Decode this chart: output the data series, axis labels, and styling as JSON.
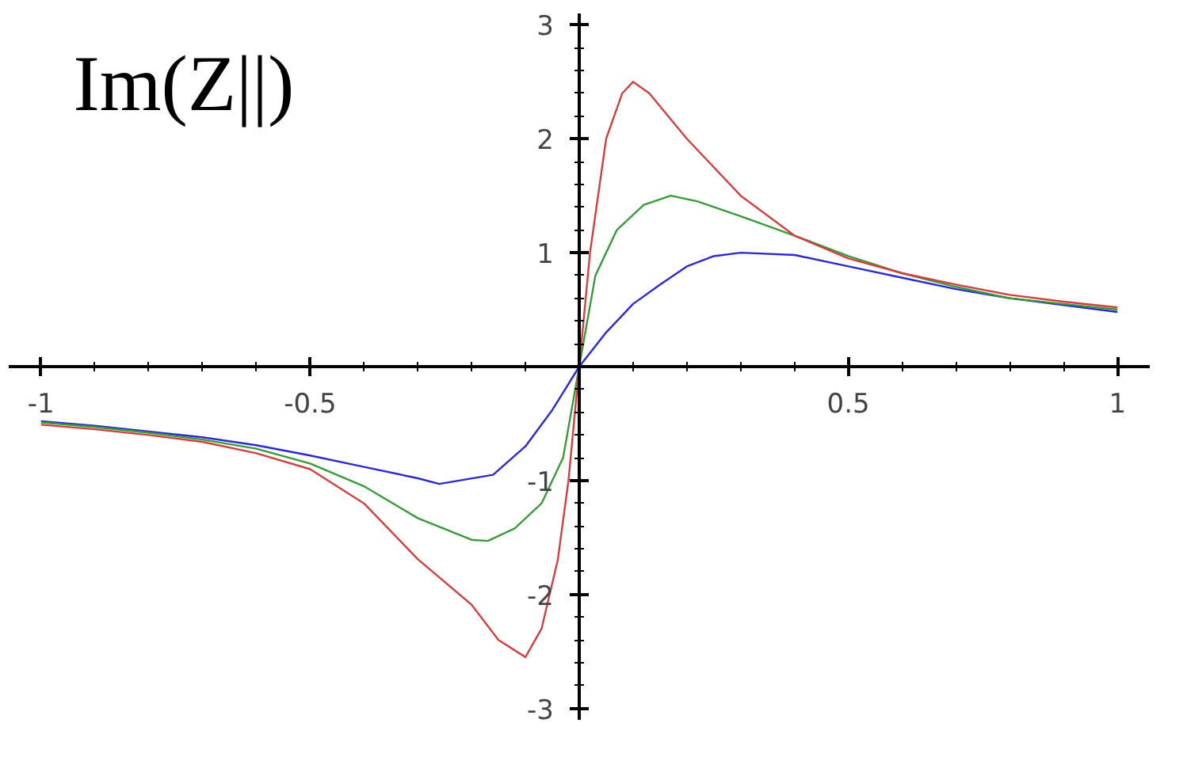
{
  "chart_data": {
    "type": "line",
    "title": "Im(Z||)",
    "xlim": [
      -1.06,
      1.06
    ],
    "ylim": [
      -3.1,
      3.1
    ],
    "xticks": [
      -1,
      {
        "value": -0.9,
        "label": null
      },
      {
        "value": -0.8,
        "label": null
      },
      {
        "value": -0.7,
        "label": null
      },
      {
        "value": -0.6,
        "label": null
      },
      -0.5,
      {
        "value": -0.4,
        "label": null
      },
      {
        "value": -0.3,
        "label": null
      },
      {
        "value": -0.2,
        "label": null
      },
      {
        "value": -0.1,
        "label": null
      },
      {
        "value": 0.1,
        "label": null
      },
      {
        "value": 0.2,
        "label": null
      },
      {
        "value": 0.3,
        "label": null
      },
      {
        "value": 0.4,
        "label": null
      },
      0.5,
      {
        "value": 0.6,
        "label": null
      },
      {
        "value": 0.7,
        "label": null
      },
      {
        "value": 0.8,
        "label": null
      },
      {
        "value": 0.9,
        "label": null
      },
      1
    ],
    "yticks": [
      -3,
      {
        "value": -2.8,
        "label": null
      },
      {
        "value": -2.6,
        "label": null
      },
      {
        "value": -2.4,
        "label": null
      },
      {
        "value": -2.2,
        "label": null
      },
      -2,
      {
        "value": -1.8,
        "label": null
      },
      {
        "value": -1.6,
        "label": null
      },
      {
        "value": -1.4,
        "label": null
      },
      {
        "value": -1.2,
        "label": null
      },
      -1,
      {
        "value": -0.8,
        "label": null
      },
      {
        "value": -0.6,
        "label": null
      },
      {
        "value": -0.4,
        "label": null
      },
      {
        "value": -0.2,
        "label": null
      },
      {
        "value": 0.2,
        "label": null
      },
      {
        "value": 0.4,
        "label": null
      },
      {
        "value": 0.6,
        "label": null
      },
      {
        "value": 0.8,
        "label": null
      },
      1,
      {
        "value": 1.2,
        "label": null
      },
      {
        "value": 1.4,
        "label": null
      },
      {
        "value": 1.6,
        "label": null
      },
      {
        "value": 1.8,
        "label": null
      },
      2,
      {
        "value": 2.2,
        "label": null
      },
      {
        "value": 2.4,
        "label": null
      },
      {
        "value": 2.6,
        "label": null
      },
      {
        "value": 2.8,
        "label": null
      },
      3
    ],
    "grid": false,
    "marker": "none",
    "line_style": "solid",
    "series": [
      {
        "color": "#d04040",
        "x": [
          -1,
          -0.9,
          -0.8,
          -0.7,
          -0.6,
          -0.5,
          -0.4,
          -0.3,
          -0.2,
          -0.15,
          -0.1,
          -0.07,
          -0.04,
          -0.02,
          0,
          0.02,
          0.05,
          0.08,
          0.1,
          0.13,
          0.2,
          0.3,
          0.4,
          0.5,
          0.6,
          0.7,
          0.8,
          0.9,
          1
        ],
        "values": [
          -0.51,
          -0.55,
          -0.6,
          -0.66,
          -0.76,
          -0.9,
          -1.2,
          -1.69,
          -2.09,
          -2.4,
          -2.55,
          -2.3,
          -1.7,
          -1.0,
          0,
          1.0,
          2.0,
          2.4,
          2.5,
          2.4,
          2.0,
          1.5,
          1.15,
          0.95,
          0.82,
          0.72,
          0.63,
          0.57,
          0.52
        ]
      },
      {
        "color": "#3a9a3a",
        "x": [
          -1,
          -0.9,
          -0.8,
          -0.7,
          -0.6,
          -0.5,
          -0.4,
          -0.3,
          -0.2,
          -0.17,
          -0.12,
          -0.07,
          -0.03,
          0,
          0.03,
          0.07,
          0.12,
          0.17,
          0.22,
          0.3,
          0.4,
          0.5,
          0.6,
          0.7,
          0.8,
          0.9,
          1
        ],
        "values": [
          -0.49,
          -0.53,
          -0.58,
          -0.64,
          -0.72,
          -0.85,
          -1.05,
          -1.33,
          -1.52,
          -1.53,
          -1.42,
          -1.2,
          -0.8,
          0,
          0.8,
          1.2,
          1.42,
          1.5,
          1.45,
          1.32,
          1.15,
          0.97,
          0.82,
          0.7,
          0.6,
          0.55,
          0.5
        ]
      },
      {
        "color": "#2a2ad0",
        "x": [
          -1,
          -0.9,
          -0.8,
          -0.7,
          -0.6,
          -0.5,
          -0.4,
          -0.3,
          -0.26,
          -0.16,
          -0.1,
          -0.05,
          0,
          0.05,
          0.1,
          0.15,
          0.2,
          0.25,
          0.3,
          0.4,
          0.5,
          0.6,
          0.7,
          0.8,
          0.9,
          1
        ],
        "values": [
          -0.48,
          -0.52,
          -0.57,
          -0.62,
          -0.69,
          -0.78,
          -0.88,
          -0.98,
          -1.03,
          -0.95,
          -0.7,
          -0.38,
          0,
          0.3,
          0.55,
          0.72,
          0.88,
          0.97,
          1.0,
          0.98,
          0.88,
          0.78,
          0.68,
          0.6,
          0.54,
          0.48
        ]
      }
    ]
  }
}
